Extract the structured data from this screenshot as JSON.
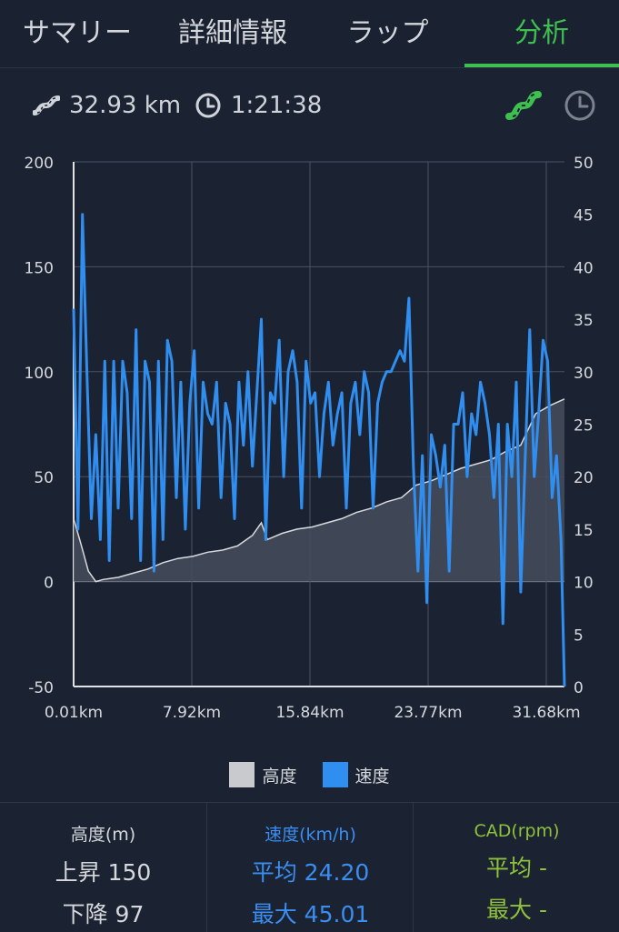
{
  "tabs": [
    {
      "label": "サマリー",
      "active": false
    },
    {
      "label": "詳細情報",
      "active": false
    },
    {
      "label": "ラップ",
      "active": false
    },
    {
      "label": "分析",
      "active": true
    }
  ],
  "stats": {
    "distance": "32.93 km",
    "duration": "1:21:38",
    "distance_icon": "road-icon",
    "time_icon": "clock-icon"
  },
  "colors": {
    "accent": "#3fbf4f",
    "altitude": "#c8cace",
    "speed": "#2f8ef0",
    "background": "#1b2333"
  },
  "chart_data": {
    "type": "line",
    "x_tick_labels": [
      "0.01km",
      "7.92km",
      "15.84km",
      "23.77km",
      "31.68km"
    ],
    "x_range": [
      0.01,
      32.93
    ],
    "y_left": {
      "ticks": [
        "200",
        "150",
        "100",
        "50",
        "0",
        "-50"
      ],
      "range": [
        -50,
        200
      ]
    },
    "y_right": {
      "ticks": [
        "50",
        "45",
        "40",
        "35",
        "30",
        "25",
        "20",
        "15",
        "10",
        "5",
        "0"
      ],
      "range": [
        0,
        50
      ]
    },
    "grid": true,
    "legend_position": "bottom",
    "series": [
      {
        "name": "高度",
        "axis": "left",
        "type": "area",
        "x": [
          0.01,
          0.5,
          1.0,
          1.5,
          2.0,
          3.0,
          4.0,
          5.0,
          6.0,
          7.0,
          8.0,
          9.0,
          10.0,
          11.0,
          12.0,
          12.6,
          13.0,
          14.0,
          15.0,
          16.0,
          17.0,
          18.0,
          19.0,
          20.0,
          21.0,
          22.0,
          23.0,
          24.0,
          25.0,
          26.0,
          27.0,
          28.0,
          29.0,
          30.0,
          31.0,
          32.0,
          32.93
        ],
        "values": [
          30,
          18,
          5,
          0,
          1,
          2,
          4,
          6,
          9,
          11,
          12,
          14,
          15,
          17,
          22,
          28,
          20,
          23,
          25,
          26,
          28,
          30,
          33,
          35,
          38,
          40,
          46,
          48,
          51,
          54,
          56,
          58,
          62,
          65,
          80,
          84,
          87
        ]
      },
      {
        "name": "速度",
        "axis": "right",
        "type": "line",
        "x": [
          0.01,
          0.3,
          0.6,
          0.9,
          1.2,
          1.5,
          1.8,
          2.1,
          2.4,
          2.7,
          3.0,
          3.3,
          3.6,
          3.9,
          4.2,
          4.5,
          4.8,
          5.1,
          5.4,
          5.7,
          6.0,
          6.3,
          6.6,
          6.9,
          7.2,
          7.5,
          7.8,
          8.1,
          8.4,
          8.7,
          9.0,
          9.3,
          9.6,
          9.9,
          10.2,
          10.5,
          10.8,
          11.1,
          11.4,
          11.7,
          12.0,
          12.3,
          12.6,
          12.9,
          13.2,
          13.5,
          13.8,
          14.1,
          14.4,
          14.7,
          15.0,
          15.3,
          15.6,
          15.9,
          16.2,
          16.5,
          16.8,
          17.1,
          17.4,
          17.7,
          18.0,
          18.3,
          18.6,
          18.9,
          19.2,
          19.5,
          19.8,
          20.1,
          20.4,
          20.7,
          21.0,
          21.3,
          21.6,
          21.9,
          22.2,
          22.5,
          22.8,
          23.1,
          23.4,
          23.7,
          24.0,
          24.3,
          24.6,
          24.9,
          25.2,
          25.5,
          25.8,
          26.1,
          26.4,
          26.7,
          27.0,
          27.3,
          27.6,
          27.9,
          28.2,
          28.5,
          28.8,
          29.1,
          29.4,
          29.7,
          30.0,
          30.3,
          30.6,
          30.9,
          31.2,
          31.5,
          31.8,
          32.1,
          32.4,
          32.7,
          32.93
        ],
        "values": [
          36,
          15,
          45,
          30,
          16,
          24,
          14,
          31,
          12,
          31,
          17,
          31,
          28,
          16,
          34,
          12,
          31,
          29,
          11,
          31,
          14,
          33,
          31,
          18,
          29,
          15,
          27,
          32,
          17,
          29,
          26,
          25,
          29,
          18,
          27,
          25,
          16,
          29,
          23,
          30,
          21,
          28,
          35,
          14,
          28,
          27,
          33,
          20,
          30,
          32,
          29,
          17,
          31,
          27,
          28,
          20,
          26,
          29,
          23,
          26,
          28,
          17,
          27,
          29,
          24,
          30,
          28,
          17,
          27,
          29,
          30,
          30,
          31,
          32,
          31,
          37,
          21,
          11,
          22,
          8,
          24,
          22,
          19,
          23,
          11,
          25,
          25,
          28,
          20,
          26,
          24,
          29,
          27,
          24,
          18,
          25,
          6,
          25,
          20,
          29,
          9,
          22,
          34,
          20,
          26,
          33,
          31,
          18,
          22,
          14,
          0
        ]
      }
    ]
  },
  "legend": [
    {
      "label": "高度",
      "color": "#c8cace"
    },
    {
      "label": "速度",
      "color": "#2f8ef0"
    }
  ],
  "summary": {
    "altitude": {
      "title": "高度(m)",
      "line1": "上昇 150",
      "line2": "下降 97",
      "color": "#d6d8dc"
    },
    "speed": {
      "title": "速度(km/h)",
      "line1": "平均 24.20",
      "line2": "最大 45.01",
      "color": "#3a8ef0"
    },
    "cadence": {
      "title": "CAD(rpm)",
      "line1": "平均 -",
      "line2": "最大 -",
      "color": "#8fc23a"
    }
  }
}
